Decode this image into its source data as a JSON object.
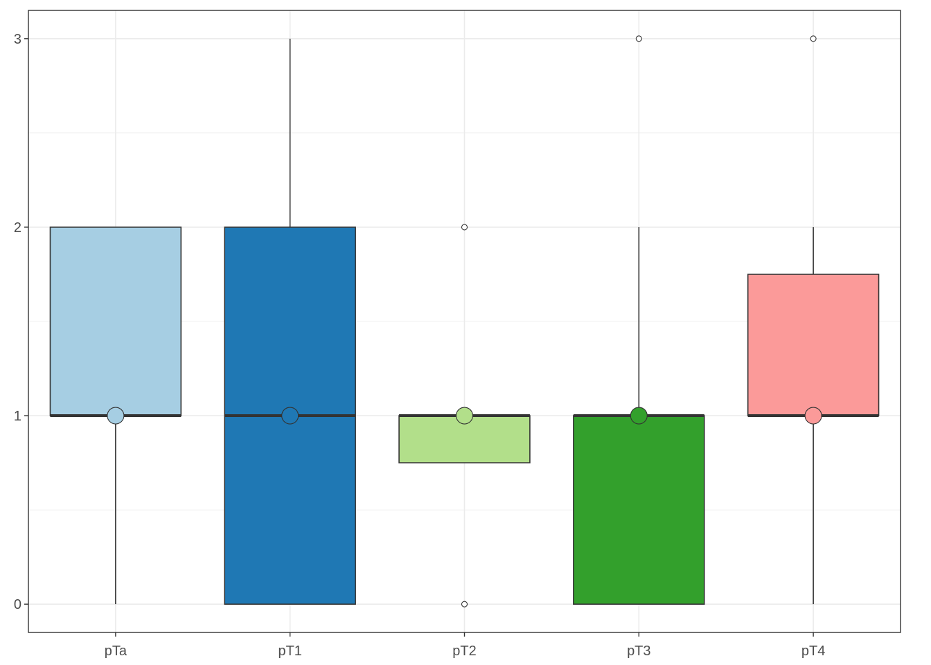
{
  "chart_data": {
    "type": "boxplot",
    "categories": [
      "pTa",
      "pT1",
      "pT2",
      "pT3",
      "pT4"
    ],
    "boxes": [
      {
        "category": "pTa",
        "whisker_low": 0,
        "q1": 1,
        "median": 1,
        "q3": 2,
        "whisker_high": 2,
        "mean": 1,
        "outliers": [],
        "fill": "#a6cee3"
      },
      {
        "category": "pT1",
        "whisker_low": 0,
        "q1": 0,
        "median": 1,
        "q3": 2,
        "whisker_high": 3,
        "mean": 1,
        "outliers": [],
        "fill": "#1f78b4"
      },
      {
        "category": "pT2",
        "whisker_low": 0.75,
        "q1": 0.75,
        "median": 1,
        "q3": 1,
        "whisker_high": 1,
        "mean": 1,
        "outliers": [
          2,
          0
        ],
        "fill": "#b2df8a"
      },
      {
        "category": "pT3",
        "whisker_low": 0,
        "q1": 0,
        "median": 1,
        "q3": 1,
        "whisker_high": 2,
        "mean": 1,
        "outliers": [
          3
        ],
        "fill": "#33a02c"
      },
      {
        "category": "pT4",
        "whisker_low": 0,
        "q1": 1,
        "median": 1,
        "q3": 1.75,
        "whisker_high": 2,
        "mean": 1,
        "outliers": [
          3
        ],
        "fill": "#fb9a99"
      }
    ],
    "y_ticks": [
      "0",
      "1",
      "2",
      "3"
    ],
    "ylim": [
      -0.15,
      3.15
    ],
    "grid": true,
    "title": "",
    "xlabel": "",
    "ylabel": ""
  }
}
